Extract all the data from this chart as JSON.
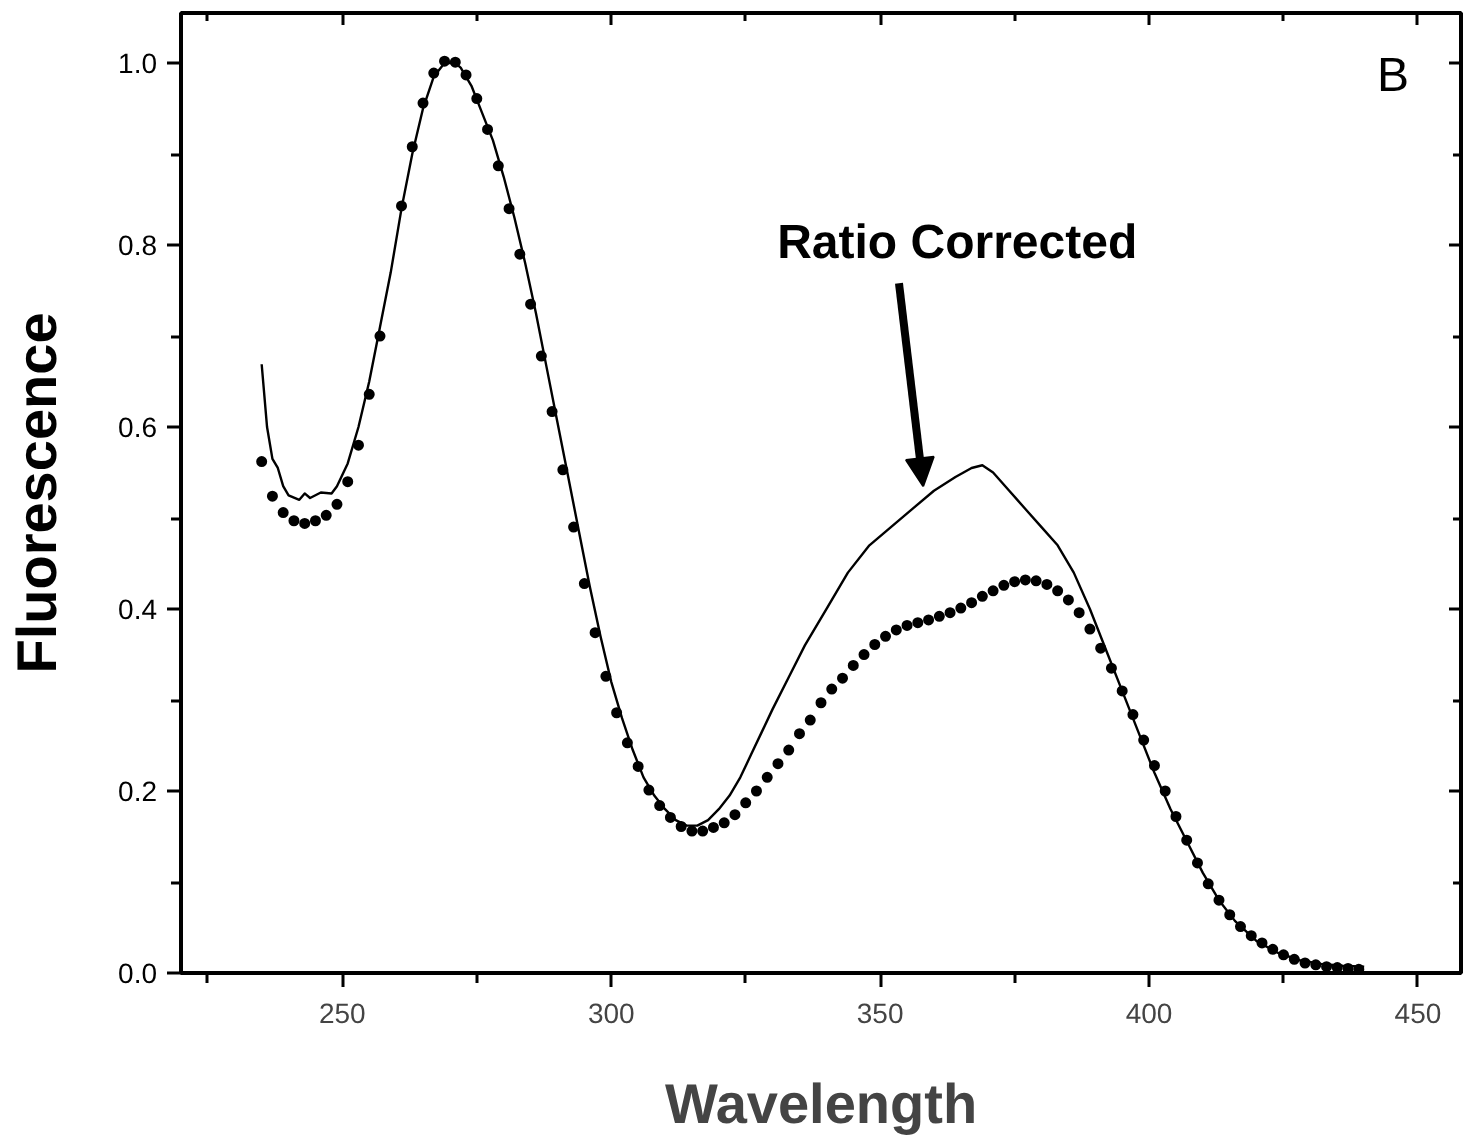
{
  "chart_data": {
    "type": "line",
    "xlabel": "Wavelength",
    "ylabel": "Fluorescence",
    "xlim": [
      220,
      458
    ],
    "ylim": [
      0,
      1.055
    ],
    "xticks": [
      {
        "value": 225,
        "label": null
      },
      250,
      {
        "value": 275,
        "label": null
      },
      300,
      {
        "value": 325,
        "label": null
      },
      350,
      {
        "value": 375,
        "label": null
      },
      400,
      {
        "value": 425,
        "label": null
      },
      450
    ],
    "yticks": [
      {
        "value": 0,
        "label": "0.0"
      },
      {
        "value": 0.1,
        "label": null
      },
      {
        "value": 0.2,
        "label": "0.2"
      },
      {
        "value": 0.3,
        "label": null
      },
      {
        "value": 0.4,
        "label": "0.4"
      },
      {
        "value": 0.5,
        "label": null
      },
      {
        "value": 0.6,
        "label": "0.6"
      },
      {
        "value": 0.7,
        "label": null
      },
      {
        "value": 0.8,
        "label": "0.8"
      },
      {
        "value": 0.9,
        "label": null
      },
      {
        "value": 1.0,
        "label": "1.0"
      }
    ],
    "grid": false,
    "annotations": [
      {
        "text": "Ratio Corrected",
        "x": 358,
        "y": 0.535
      },
      "B"
    ],
    "series": [
      {
        "color": "#000000",
        "line_style": "solid",
        "x": [
          235,
          236,
          237,
          238,
          239,
          240,
          242,
          243,
          244,
          246,
          248,
          249,
          251,
          253,
          255,
          257,
          259,
          261,
          263,
          265,
          267,
          269,
          271,
          272,
          274,
          276,
          278,
          280,
          282,
          284,
          286,
          288,
          290,
          292,
          294,
          296,
          298,
          300,
          302,
          304,
          306,
          308,
          310,
          312,
          314,
          316,
          318,
          320,
          322,
          324,
          326,
          328,
          330,
          333,
          336,
          340,
          344,
          348,
          352,
          356,
          360,
          364,
          367,
          369,
          371,
          374,
          377,
          380,
          383,
          386,
          389,
          392,
          395,
          398,
          401,
          404,
          407,
          410,
          413,
          416,
          420,
          424,
          428,
          432,
          436,
          440
        ],
        "values": [
          0.669,
          0.6,
          0.565,
          0.555,
          0.535,
          0.525,
          0.52,
          0.527,
          0.522,
          0.528,
          0.527,
          0.535,
          0.56,
          0.6,
          0.65,
          0.71,
          0.77,
          0.84,
          0.9,
          0.95,
          0.985,
          1.0,
          1.0,
          0.995,
          0.975,
          0.945,
          0.915,
          0.875,
          0.83,
          0.78,
          0.725,
          0.665,
          0.605,
          0.545,
          0.485,
          0.425,
          0.37,
          0.32,
          0.28,
          0.245,
          0.215,
          0.195,
          0.18,
          0.168,
          0.162,
          0.162,
          0.168,
          0.18,
          0.195,
          0.215,
          0.24,
          0.265,
          0.29,
          0.325,
          0.36,
          0.4,
          0.44,
          0.47,
          0.49,
          0.51,
          0.53,
          0.545,
          0.555,
          0.558,
          0.55,
          0.53,
          0.51,
          0.49,
          0.47,
          0.44,
          0.4,
          0.355,
          0.31,
          0.265,
          0.22,
          0.18,
          0.145,
          0.11,
          0.08,
          0.057,
          0.035,
          0.022,
          0.014,
          0.01,
          0.008,
          0.007
        ]
      },
      {
        "type": "scatter",
        "color": "#000000",
        "marker": "circle",
        "x": [
          235,
          237,
          239,
          241,
          243,
          245,
          247,
          249,
          251,
          253,
          255,
          257,
          261,
          263,
          265,
          267,
          269,
          271,
          273,
          275,
          277,
          279,
          281,
          283,
          285,
          287,
          289,
          291,
          293,
          295,
          297,
          299,
          301,
          303,
          305,
          307,
          309,
          311,
          313,
          315,
          317,
          319,
          321,
          323,
          325,
          327,
          329,
          331,
          333,
          335,
          337,
          339,
          341,
          343,
          345,
          347,
          349,
          351,
          353,
          355,
          357,
          359,
          361,
          363,
          365,
          367,
          369,
          371,
          373,
          375,
          377,
          379,
          381,
          383,
          385,
          387,
          389,
          391,
          393,
          395,
          397,
          399,
          401,
          403,
          405,
          407,
          409,
          411,
          413,
          415,
          417,
          419,
          421,
          423,
          425,
          427,
          429,
          431,
          433,
          435,
          437,
          439
        ],
        "values": [
          0.562,
          0.524,
          0.506,
          0.497,
          0.494,
          0.497,
          0.503,
          0.515,
          0.54,
          0.58,
          0.636,
          0.7,
          0.843,
          0.908,
          0.956,
          0.989,
          1.002,
          1.001,
          0.987,
          0.961,
          0.927,
          0.887,
          0.84,
          0.79,
          0.735,
          0.678,
          0.617,
          0.553,
          0.49,
          0.428,
          0.374,
          0.326,
          0.286,
          0.253,
          0.227,
          0.201,
          0.184,
          0.171,
          0.161,
          0.156,
          0.156,
          0.16,
          0.165,
          0.174,
          0.187,
          0.2,
          0.215,
          0.23,
          0.245,
          0.263,
          0.278,
          0.297,
          0.312,
          0.324,
          0.338,
          0.35,
          0.361,
          0.37,
          0.377,
          0.382,
          0.385,
          0.388,
          0.392,
          0.396,
          0.401,
          0.407,
          0.414,
          0.42,
          0.426,
          0.43,
          0.432,
          0.431,
          0.427,
          0.42,
          0.41,
          0.396,
          0.378,
          0.357,
          0.335,
          0.31,
          0.284,
          0.256,
          0.228,
          0.2,
          0.172,
          0.146,
          0.121,
          0.098,
          0.08,
          0.064,
          0.051,
          0.041,
          0.033,
          0.026,
          0.02,
          0.015,
          0.011,
          0.009,
          0.007,
          0.006,
          0.005,
          0.004
        ]
      }
    ]
  }
}
